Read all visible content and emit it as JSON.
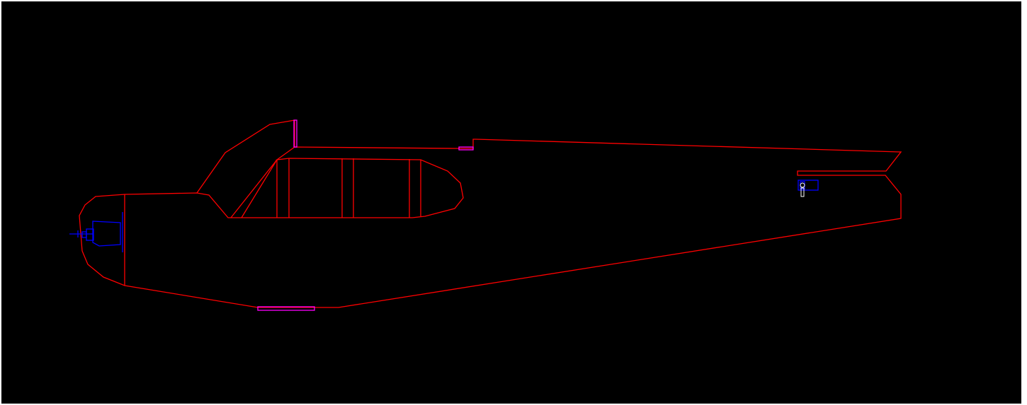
{
  "drawing": {
    "background_color": "#000000",
    "colors": {
      "outline": "#ff0000",
      "engine_and_servo": "#0000ff",
      "fittings": "#ff00ff",
      "small_detail": "#ffffff"
    }
  }
}
